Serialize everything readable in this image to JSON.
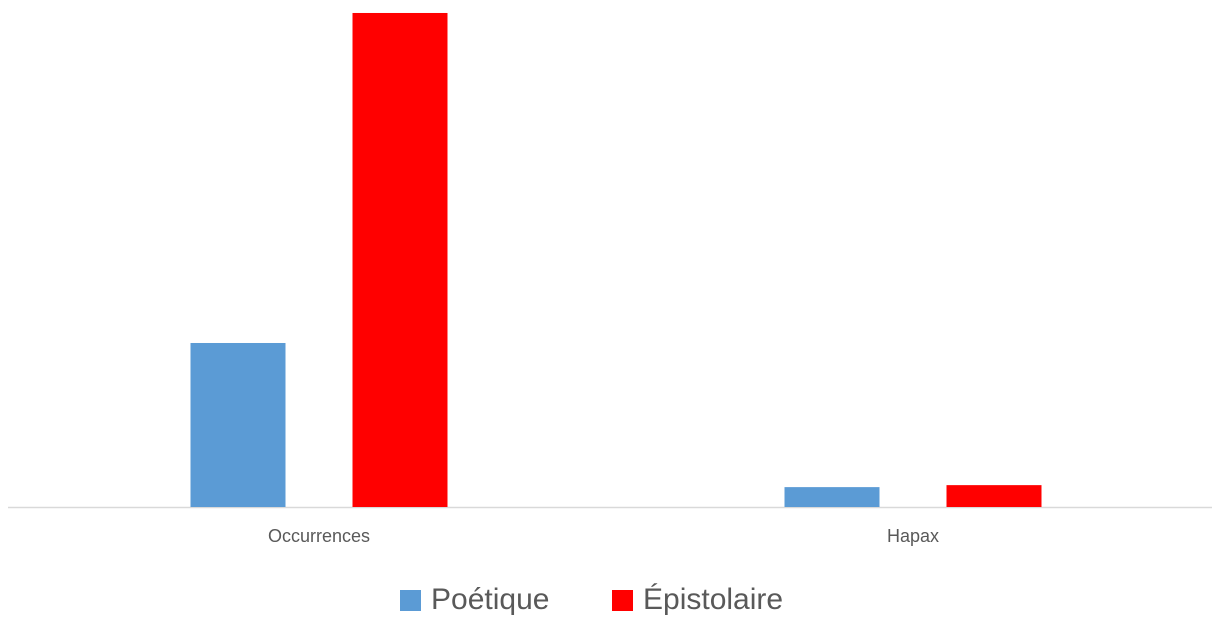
{
  "chart_data": {
    "type": "bar",
    "categories": [
      "Occurrences",
      "Hapax"
    ],
    "series": [
      {
        "name": "Poétique",
        "color": "#5b9bd5",
        "values": [
          165,
          20
        ]
      },
      {
        "name": "Épistolaire",
        "color": "#ff0000",
        "values": [
          497,
          22
        ]
      }
    ],
    "ylim": [
      0,
      500
    ],
    "legend": "bottom"
  }
}
